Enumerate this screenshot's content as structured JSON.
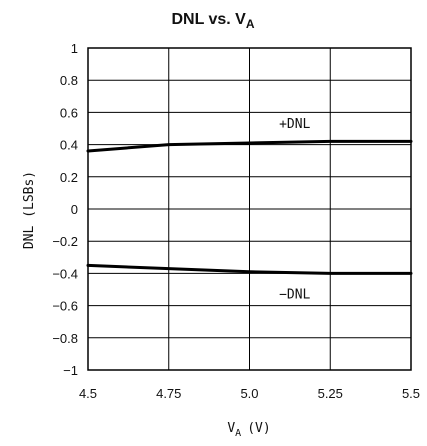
{
  "chart_data": {
    "type": "line",
    "title": "DNL vs. V",
    "title_subscript": "A",
    "xlabel": "V",
    "xlabel_subscript": "A",
    "xlabel_unit": "(V)",
    "ylabel": "DNL (LSBs)",
    "xlim": [
      4.5,
      5.5
    ],
    "ylim": [
      -1,
      1
    ],
    "x_ticks": [
      4.5,
      4.75,
      5.0,
      5.25,
      5.5
    ],
    "x_tick_labels": [
      "4.5",
      "4.75",
      "5.0",
      "5.25",
      "5.5"
    ],
    "y_ticks": [
      1,
      0.8,
      0.6,
      0.4,
      0.2,
      0,
      -0.2,
      -0.4,
      -0.6,
      -0.8,
      -1
    ],
    "y_tick_labels": [
      "1",
      "0.8",
      "0.6",
      "0.4",
      "0.2",
      "0",
      "−0.2",
      "−0.4",
      "−0.6",
      "−0.8",
      "−1"
    ],
    "grid": true,
    "series": [
      {
        "name": "+DNL",
        "x": [
          4.5,
          4.75,
          5.0,
          5.25,
          5.5
        ],
        "y": [
          0.36,
          0.4,
          0.41,
          0.42,
          0.42
        ]
      },
      {
        "name": "−DNL",
        "x": [
          4.5,
          4.75,
          5.0,
          5.25,
          5.5
        ],
        "y": [
          -0.35,
          -0.37,
          -0.39,
          -0.4,
          -0.4
        ]
      }
    ]
  }
}
